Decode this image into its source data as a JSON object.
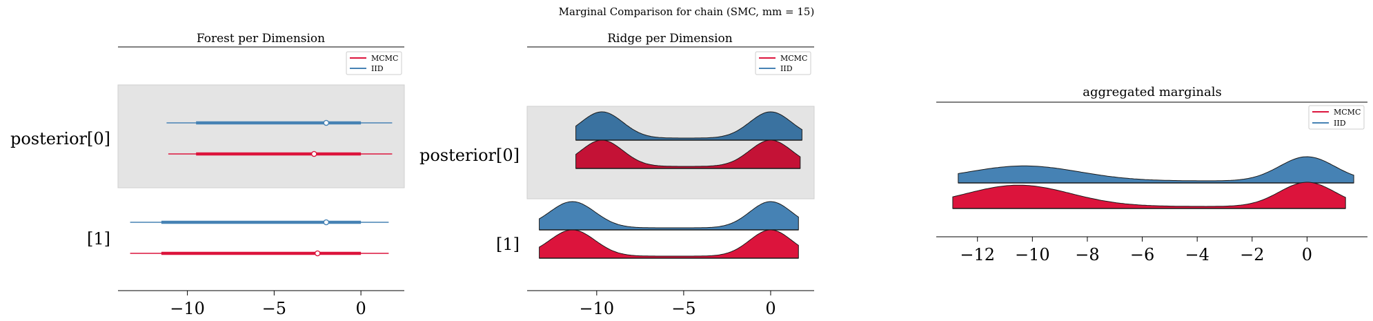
{
  "suptitle": "Marginal Comparison for chain (SMC, mm = 15)",
  "colors": {
    "mcmc": "#dc143c",
    "mcmc_dark": "#c41236",
    "iid": "#4682b4",
    "iid_dark": "#3a72a0",
    "highlight": "#e4e4e4"
  },
  "legend": [
    "MCMC",
    "IID"
  ],
  "chart_data": [
    {
      "type": "forest",
      "title": "Forest per Dimension",
      "variables": [
        "posterior[0]",
        "[1]"
      ],
      "highlighted": "posterior[0]",
      "xlim": [
        -14,
        2.5
      ],
      "xticks": [
        -10,
        -5,
        0
      ],
      "tick_labels": [
        "−10",
        "−5",
        "0"
      ],
      "legend_loc": "top-right",
      "series": [
        {
          "name": "IID",
          "variable": "posterior[0]",
          "hdi": [
            -11.2,
            1.8
          ],
          "iqr": [
            -9.5,
            0
          ],
          "point": -2.0
        },
        {
          "name": "MCMC",
          "variable": "posterior[0]",
          "hdi": [
            -11.1,
            1.8
          ],
          "iqr": [
            -9.5,
            0
          ],
          "point": -2.7
        },
        {
          "name": "IID",
          "variable": "[1]",
          "hdi": [
            -13.3,
            1.6
          ],
          "iqr": [
            -11.5,
            0
          ],
          "point": -2.0
        },
        {
          "name": "MCMC",
          "variable": "[1]",
          "hdi": [
            -13.3,
            1.6
          ],
          "iqr": [
            -11.5,
            0
          ],
          "point": -2.5
        }
      ]
    },
    {
      "type": "ridge",
      "title": "Ridge per Dimension",
      "variables": [
        "posterior[0]",
        "[1]"
      ],
      "highlighted": "posterior[0]",
      "xlim": [
        -14,
        2.5
      ],
      "xticks": [
        -10,
        -5,
        0
      ],
      "tick_labels": [
        "−10",
        "−5",
        "0"
      ],
      "legend_loc": "top-right",
      "series": [
        {
          "name": "IID",
          "variable": "posterior[0]",
          "range": [
            -11.2,
            1.8
          ],
          "modes": [
            [
              -9.7,
              1.2,
              1.0
            ],
            [
              0,
              1.2,
              1.0
            ]
          ]
        },
        {
          "name": "MCMC",
          "variable": "posterior[0]",
          "range": [
            -11.2,
            1.7
          ],
          "modes": [
            [
              -9.7,
              1.2,
              1.0
            ],
            [
              0,
              1.2,
              1.0
            ]
          ]
        },
        {
          "name": "IID",
          "variable": "[1]",
          "range": [
            -13.3,
            1.6
          ],
          "modes": [
            [
              -11.4,
              1.3,
              1.0
            ],
            [
              0,
              1.2,
              1.0
            ]
          ]
        },
        {
          "name": "MCMC",
          "variable": "[1]",
          "range": [
            -13.3,
            1.6
          ],
          "modes": [
            [
              -11.4,
              1.3,
              1.0
            ],
            [
              0,
              1.2,
              1.0
            ]
          ]
        }
      ]
    },
    {
      "type": "ridge",
      "title": "aggregated marginals",
      "xlim": [
        -13.5,
        2.2
      ],
      "xticks": [
        -12,
        -10,
        -8,
        -6,
        -4,
        -2,
        0
      ],
      "tick_labels": [
        "−12",
        "−10",
        "−8",
        "−6",
        "−4",
        "−2",
        "0"
      ],
      "legend_loc": "top-right",
      "series": [
        {
          "name": "IID",
          "range": [
            -12.7,
            1.7
          ],
          "modes": [
            [
              -10.3,
              2.0,
              0.62
            ],
            [
              0,
              1.0,
              1.0
            ]
          ]
        },
        {
          "name": "MCMC",
          "range": [
            -12.9,
            1.4
          ],
          "modes": [
            [
              -10.5,
              1.9,
              0.88
            ],
            [
              0,
              1.0,
              1.0
            ]
          ]
        }
      ]
    }
  ]
}
